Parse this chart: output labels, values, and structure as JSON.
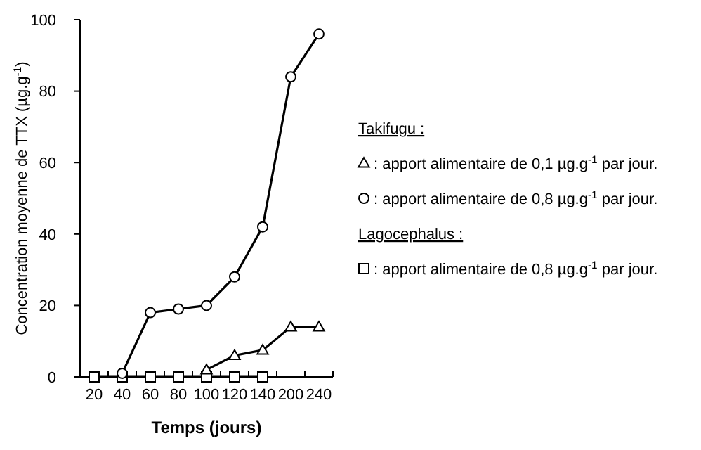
{
  "chart_data": {
    "type": "line",
    "xlabel": "Temps (jours)",
    "ylabel": "Concentration moyenne de TTX (µg.g$^{-1}$)",
    "categories": [
      "20",
      "40",
      "60",
      "80",
      "100",
      "120",
      "140",
      "200",
      "240"
    ],
    "series": [
      {
        "name": ": apport alimentaire de 0,1 µg.g$^{-1}$ par jour.",
        "color": "#000000",
        "marker": "triangle",
        "values": [
          null,
          null,
          null,
          null,
          2,
          6,
          7.5,
          14,
          14
        ]
      },
      {
        "name": ": apport alimentaire de 0,8 µg.g$^{-1}$ par jour.",
        "color": "#000000",
        "marker": "circle",
        "values": [
          null,
          1,
          18,
          19,
          20,
          28,
          42,
          84,
          96
        ]
      },
      {
        "name": ": apport alimentaire de 0,8 µg.g$^{-1}$ par jour.",
        "color": "#000000",
        "marker": "square",
        "values": [
          0,
          0,
          0,
          0,
          0,
          0,
          0,
          null,
          null
        ]
      }
    ],
    "annotations": [
      "Takifugu :",
      "Lagocephalus :"
    ],
    "ylim": [
      0,
      100
    ],
    "yticks": [
      0,
      20,
      40,
      60,
      80,
      100
    ],
    "grid": false,
    "legend": "right",
    "line_style": "solid"
  }
}
